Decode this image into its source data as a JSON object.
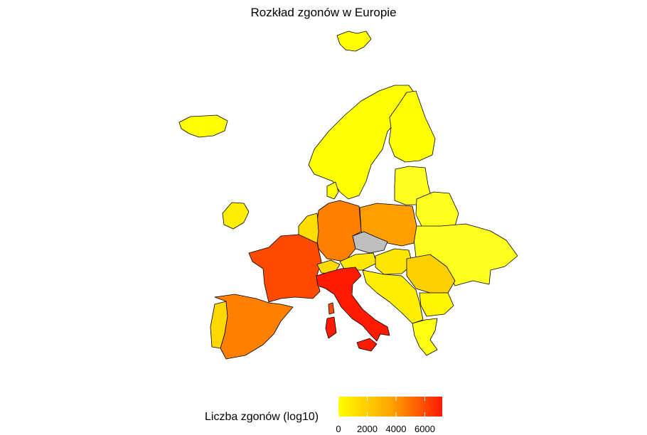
{
  "title": "Rozkład zgonów w Europie",
  "legend": {
    "title": "Liczba zgonów (log10)",
    "ticks": [
      "0",
      "2000",
      "4000",
      "6000"
    ],
    "tick_values": [
      0,
      2000,
      4000,
      6000
    ],
    "range": [
      0,
      7200
    ],
    "colors": [
      "#ffff00",
      "#ff8c00",
      "#ff0000"
    ]
  },
  "colors": {
    "no_data": "#bebebe",
    "border": "#000000"
  },
  "chart_data": {
    "type": "choropleth",
    "title": "Rozkład zgonów w Europie",
    "legend_title": "Liczba zgonów (log10)",
    "legend_placement": "bottom",
    "regions": [
      {
        "id": "it",
        "color": "#ff1a00"
      },
      {
        "id": "es",
        "color": "#ff8000"
      },
      {
        "id": "fr",
        "color": "#ff4a00"
      },
      {
        "id": "de",
        "color": "#ff8000"
      },
      {
        "id": "pl",
        "color": "#ff9e00"
      },
      {
        "id": "cz",
        "color": "#bebebe"
      },
      {
        "id": "ro",
        "color": "#ffd000"
      },
      {
        "id": "pt",
        "color": "#ffd800"
      },
      {
        "id": "benelux",
        "color": "#ffdd00"
      },
      {
        "id": "ch",
        "color": "#ffdc00"
      },
      {
        "id": "at",
        "color": "#ffe800"
      },
      {
        "id": "hu",
        "color": "#ffe600"
      },
      {
        "id": "balkans",
        "color": "#ffee00"
      },
      {
        "id": "bg",
        "color": "#fff600"
      },
      {
        "id": "gr",
        "color": "#ffff10"
      },
      {
        "id": "scandinavia",
        "color": "#ffff00"
      },
      {
        "id": "fi",
        "color": "#ffff00"
      },
      {
        "id": "baltics",
        "color": "#ffff20"
      },
      {
        "id": "belarus",
        "color": "#ffff20"
      },
      {
        "id": "ukraine",
        "color": "#ffff20"
      },
      {
        "id": "ie",
        "color": "#ffee00"
      },
      {
        "id": "is",
        "color": "#ffff00"
      },
      {
        "id": "dk",
        "color": "#ffff00"
      },
      {
        "id": "svalbard",
        "color": "#ffff00"
      }
    ]
  }
}
